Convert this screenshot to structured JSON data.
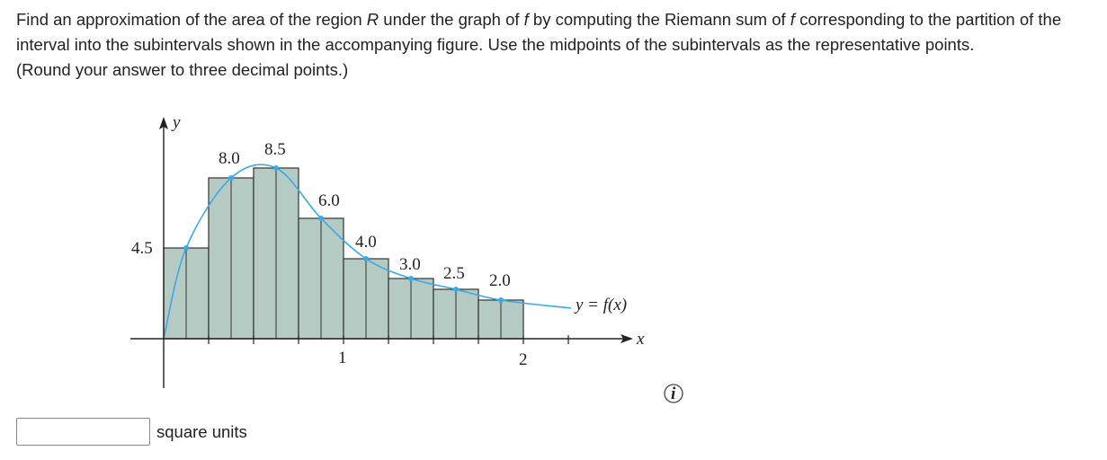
{
  "question": {
    "part1": "Find an approximation of the area of the region ",
    "region": "R",
    "part2": " under the graph of ",
    "f1": "f",
    "part3": " by computing the Riemann sum of ",
    "f2": "f",
    "part4": " corresponding to the partition of the interval into the subintervals shown in the accompanying figure. Use the midpoints of the subintervals as the representative points.",
    "note": "(Round your answer to three decimal points.)"
  },
  "figure": {
    "y_axis": "y",
    "x_axis": "x",
    "curve_label": "y = f(x)",
    "x_ticks": [
      "1",
      "2"
    ],
    "height_labels": [
      "4.5",
      "8.0",
      "8.5",
      "6.0",
      "4.0",
      "3.0",
      "2.5",
      "2.0"
    ]
  },
  "answer": {
    "unit": "square units"
  }
}
